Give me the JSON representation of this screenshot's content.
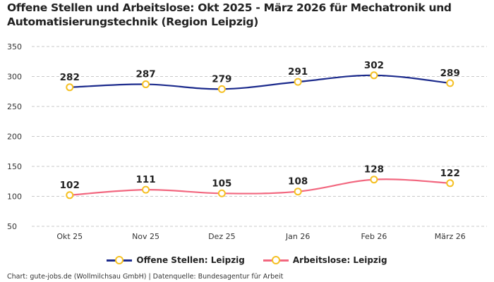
{
  "title": "Offene Stellen und Arbeitslose: Okt 2025 - März 2026 für Mechatronik und Automatisierungstechnik (Region Leipzig)",
  "footer": "Chart: gute-jobs.de (Wollmilchsau GmbH) | Datenquelle: Bundesagentur für Arbeit",
  "chart_data": {
    "type": "line",
    "title": "Offene Stellen und Arbeitslose: Okt 2025 - März 2026 für Mechatronik und Automatisierungstechnik (Region Leipzig)",
    "categories": [
      "Okt 25",
      "Nov 25",
      "Dez 25",
      "Jan 26",
      "Feb 26",
      "März 26"
    ],
    "ylim": [
      50,
      350
    ],
    "yticks": [
      50,
      100,
      150,
      200,
      250,
      300,
      350
    ],
    "grid": true,
    "legend_position": "bottom",
    "marker_color": "#f5c023",
    "series": [
      {
        "name": "Offene Stellen: Leipzig",
        "color": "#1b2a8c",
        "values": [
          282,
          287,
          279,
          291,
          302,
          289
        ]
      },
      {
        "name": "Arbeitslose: Leipzig",
        "color": "#f2677f",
        "values": [
          102,
          111,
          105,
          108,
          128,
          122
        ]
      }
    ]
  }
}
